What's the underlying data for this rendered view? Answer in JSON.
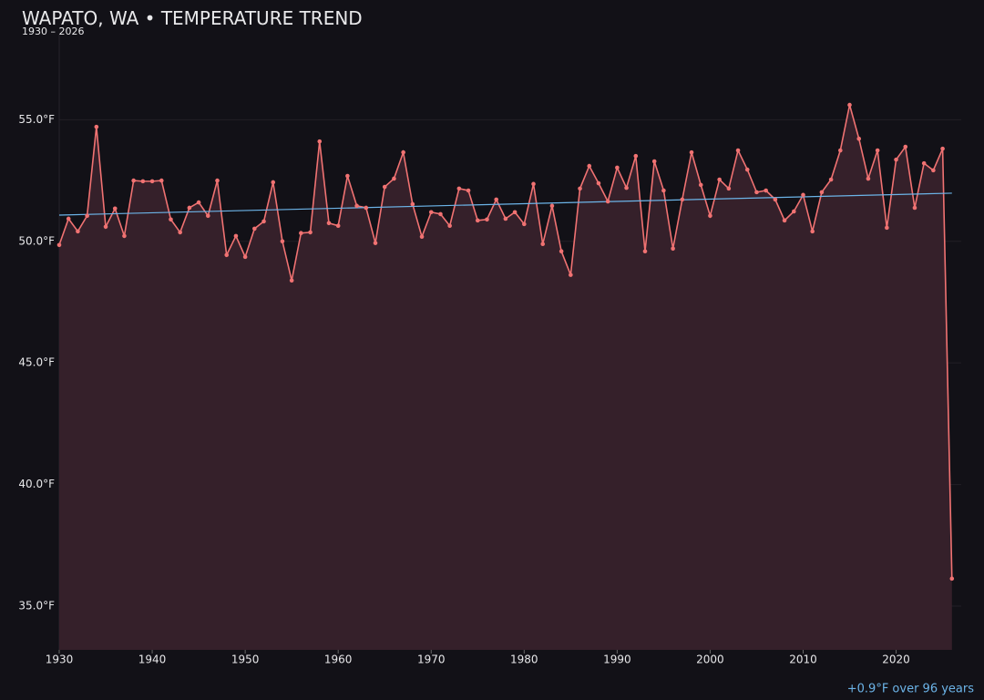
{
  "chart_data": {
    "type": "line",
    "title": "WAPATO, WA • TEMPERATURE TREND",
    "subtitle": "1930 – 2026",
    "annotation": "+0.9°F over 96 years",
    "x": [
      1930,
      1931,
      1932,
      1933,
      1934,
      1935,
      1936,
      1937,
      1938,
      1939,
      1940,
      1941,
      1942,
      1943,
      1944,
      1945,
      1946,
      1947,
      1948,
      1949,
      1950,
      1951,
      1952,
      1953,
      1954,
      1955,
      1956,
      1957,
      1958,
      1959,
      1960,
      1961,
      1962,
      1963,
      1964,
      1965,
      1966,
      1967,
      1968,
      1969,
      1970,
      1971,
      1972,
      1973,
      1974,
      1975,
      1976,
      1977,
      1978,
      1979,
      1980,
      1981,
      1982,
      1983,
      1984,
      1985,
      1986,
      1987,
      1988,
      1989,
      1990,
      1991,
      1992,
      1993,
      1994,
      1995,
      1996,
      1997,
      1998,
      1999,
      2000,
      2001,
      2002,
      2003,
      2004,
      2005,
      2006,
      2007,
      2008,
      2009,
      2010,
      2011,
      2012,
      2013,
      2014,
      2015,
      2016,
      2017,
      2018,
      2019,
      2020,
      2021,
      2022,
      2023,
      2024,
      2025,
      2026
    ],
    "series": [
      {
        "color": "#f07272",
        "fill": "#35202a",
        "values": [
          49.85,
          50.93,
          50.41,
          51.05,
          54.71,
          50.6,
          51.35,
          50.22,
          52.5,
          52.47,
          52.47,
          52.5,
          50.9,
          50.37,
          51.38,
          51.6,
          51.05,
          52.5,
          49.44,
          50.22,
          49.36,
          50.52,
          50.82,
          52.43,
          50.0,
          48.39,
          50.34,
          50.37,
          54.11,
          50.75,
          50.64,
          52.69,
          51.46,
          51.38,
          49.93,
          52.24,
          52.58,
          53.66,
          51.53,
          50.19,
          51.2,
          51.12,
          50.64,
          52.17,
          52.09,
          50.86,
          50.9,
          51.72,
          50.93,
          51.2,
          50.71,
          52.36,
          49.89,
          51.46,
          49.59,
          48.62,
          52.17,
          53.1,
          52.39,
          51.64,
          53.03,
          52.2,
          53.51,
          49.59,
          53.29,
          52.09,
          49.7,
          51.72,
          53.66,
          52.32,
          51.05,
          52.54,
          52.17,
          53.74,
          52.95,
          52.02,
          52.09,
          51.72,
          50.86,
          51.23,
          51.91,
          50.41,
          52.02,
          52.54,
          53.74,
          55.61,
          54.22,
          52.58,
          53.74,
          50.56,
          53.36,
          53.89,
          51.38,
          53.21,
          52.92,
          53.81,
          36.13
        ]
      }
    ],
    "trend": {
      "color": "#6cb4e8",
      "x": [
        1930,
        2026
      ],
      "values": [
        51.08,
        51.98
      ]
    },
    "xlim": [
      1930,
      2027
    ],
    "ylim": [
      33.2,
      58.5
    ],
    "xticks": [
      1930,
      1940,
      1950,
      1960,
      1970,
      1980,
      1990,
      2000,
      2010,
      2020
    ],
    "yticks": [
      {
        "value": 35,
        "label": "35.0°F"
      },
      {
        "value": 40,
        "label": "40.0°F"
      },
      {
        "value": 45,
        "label": "45.0°F"
      },
      {
        "value": 50,
        "label": "50.0°F"
      },
      {
        "value": 55,
        "label": "55.0°F"
      }
    ],
    "grid": true
  }
}
